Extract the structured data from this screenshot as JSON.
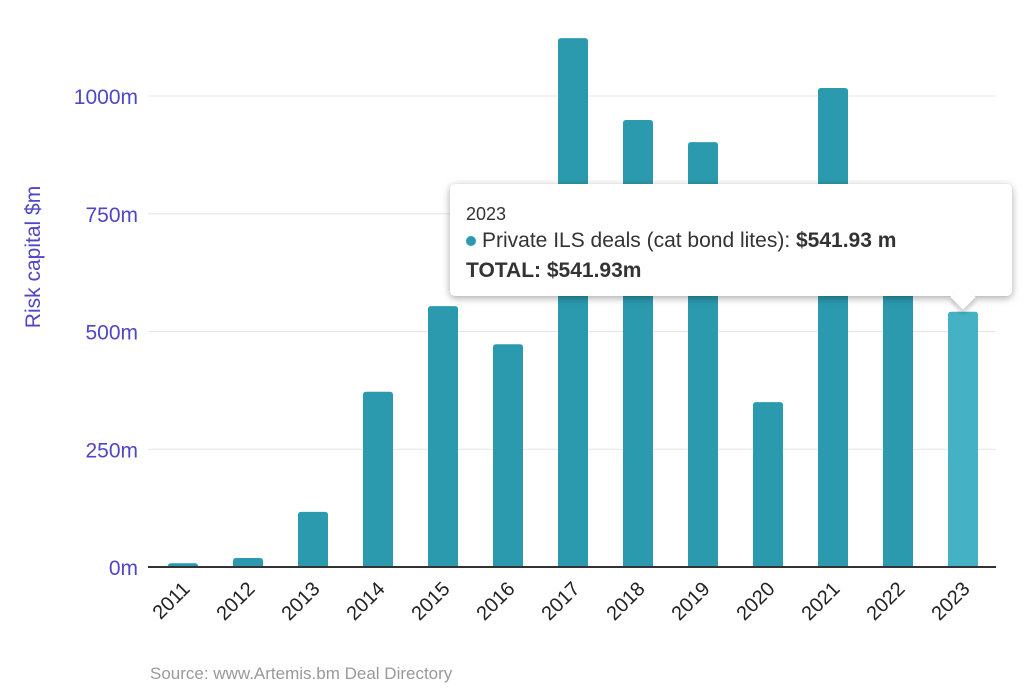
{
  "chart_data": {
    "type": "bar",
    "categories": [
      "2011",
      "2012",
      "2013",
      "2014",
      "2015",
      "2016",
      "2017",
      "2018",
      "2019",
      "2020",
      "2021",
      "2022",
      "2023"
    ],
    "series": [
      {
        "name": "Private ILS deals (cat bond lites)",
        "values": [
          8,
          19,
          117,
          372,
          554,
          473,
          1123,
          949,
          902,
          350,
          1017,
          700,
          541.93
        ]
      }
    ],
    "ylabel": "Risk capital $m",
    "xlabel": "",
    "ylim": [
      0,
      1150
    ],
    "yticks": [
      0,
      250,
      500,
      750,
      1000
    ],
    "ytick_labels": [
      "0m",
      "250m",
      "500m",
      "750m",
      "1000m"
    ],
    "grid": true,
    "credit": "Source: www.Artemis.bm Deal Directory",
    "colors": {
      "bar": "#2c9aae",
      "highlight": "#45b1c5",
      "axis_text": "#5046c8"
    },
    "highlighted_category": "2023"
  },
  "tooltip": {
    "header": "2023",
    "series_label": "Private ILS deals (cat bond lites): ",
    "series_value": "$541.93 m",
    "total": "TOTAL: $541.93m"
  }
}
